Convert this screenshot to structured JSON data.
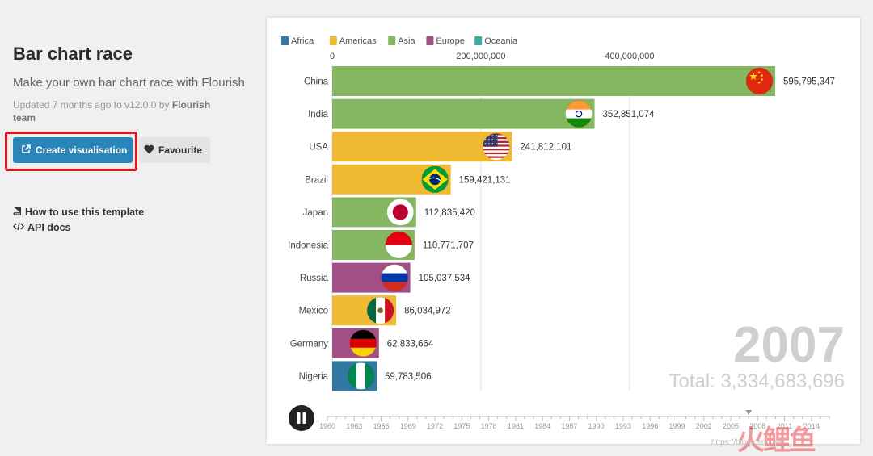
{
  "sidebar": {
    "title": "Bar chart race",
    "subtitle": "Make your own bar chart race with Flourish",
    "updated_prefix": "Updated 7 months ago to v12.0.0 by ",
    "author": "Flourish team",
    "create_label": "Create visualisation",
    "favourite_label": "Favourite",
    "how_to_label": "How to use this template",
    "api_label": "API docs"
  },
  "colors": {
    "Africa": "#3377a3",
    "Americas": "#f0b932",
    "Asia": "#85b761",
    "Europe": "#a24f85",
    "Oceania": "#3aaca3",
    "accent_button": "#2a86b8",
    "highlight_box": "#e5131a"
  },
  "chart_data": {
    "type": "bar",
    "legend": [
      {
        "name": "Africa",
        "color": "#3377a3"
      },
      {
        "name": "Americas",
        "color": "#f0b932"
      },
      {
        "name": "Asia",
        "color": "#85b761"
      },
      {
        "name": "Europe",
        "color": "#a24f85"
      },
      {
        "name": "Oceania",
        "color": "#3aaca3"
      }
    ],
    "legend_position": "top-left",
    "xlim": [
      0,
      595795347
    ],
    "x_ticks": [
      {
        "value": 0,
        "label": "0"
      },
      {
        "value": 200000000,
        "label": "200,000,000"
      },
      {
        "value": 400000000,
        "label": "400,000,000"
      }
    ],
    "grid": true,
    "bars": [
      {
        "category": "China",
        "value": 595795347,
        "label": "595,795,347",
        "region": "Asia",
        "flag": "china-flag"
      },
      {
        "category": "India",
        "value": 352851074,
        "label": "352,851,074",
        "region": "Asia",
        "flag": "india-flag"
      },
      {
        "category": "USA",
        "value": 241812101,
        "label": "241,812,101",
        "region": "Americas",
        "flag": "usa-flag"
      },
      {
        "category": "Brazil",
        "value": 159421131,
        "label": "159,421,131",
        "region": "Americas",
        "flag": "brazil-flag"
      },
      {
        "category": "Japan",
        "value": 112835420,
        "label": "112,835,420",
        "region": "Asia",
        "flag": "japan-flag"
      },
      {
        "category": "Indonesia",
        "value": 110771707,
        "label": "110,771,707",
        "region": "Asia",
        "flag": "indonesia-flag"
      },
      {
        "category": "Russia",
        "value": 105037534,
        "label": "105,037,534",
        "region": "Europe",
        "flag": "russia-flag"
      },
      {
        "category": "Mexico",
        "value": 86034972,
        "label": "86,034,972",
        "region": "Americas",
        "flag": "mexico-flag"
      },
      {
        "category": "Germany",
        "value": 62833664,
        "label": "62,833,664",
        "region": "Europe",
        "flag": "germany-flag"
      },
      {
        "category": "Nigeria",
        "value": 59783506,
        "label": "59,783,506",
        "region": "Africa",
        "flag": "nigeria-flag"
      }
    ],
    "current_year": "2007",
    "total_label": "Total: 3,334,683,696",
    "timeline": {
      "years": [
        "1960",
        "1963",
        "1966",
        "1969",
        "1972",
        "1975",
        "1978",
        "1981",
        "1984",
        "1987",
        "1990",
        "1993",
        "1996",
        "1999",
        "2002",
        "2005",
        "2008",
        "2011",
        "2014"
      ],
      "start": 1960,
      "end": 2016,
      "current": 2007
    }
  },
  "watermark": {
    "text": "火鲤鱼",
    "url": "https://blog.csdn.net"
  }
}
